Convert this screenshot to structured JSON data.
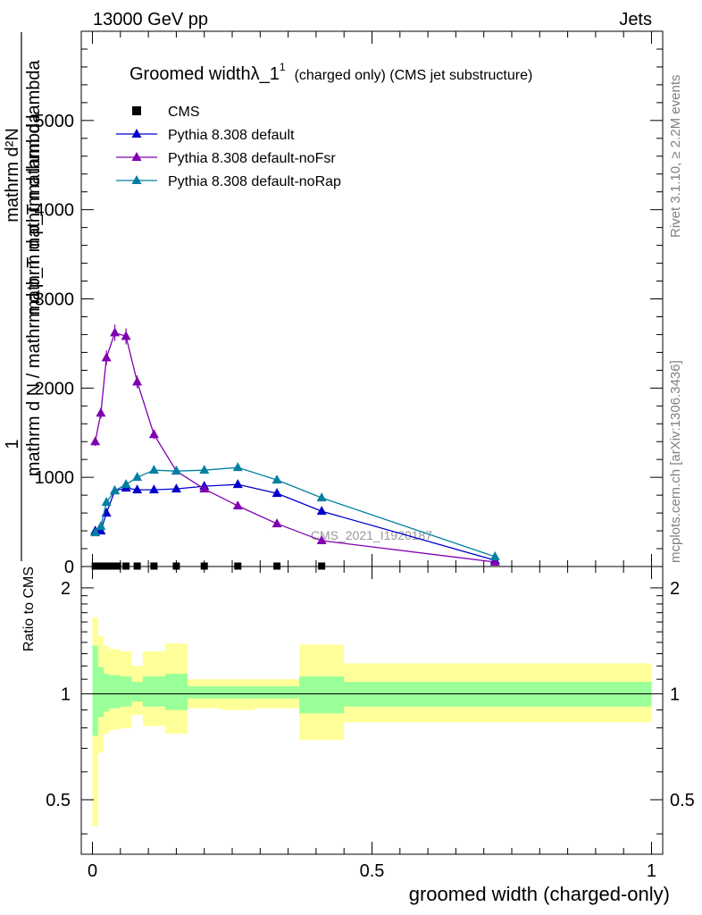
{
  "header": {
    "left": "13000 GeV pp",
    "right": "Jets"
  },
  "side_labels": {
    "rivet": "Rivet 3.1.10, ≥ 2.2M events",
    "mcplots": "mcplots.cern.ch [arXiv:1306.3436]"
  },
  "watermark": "CMS_2021_I1920187",
  "colors": {
    "cms": "#000000",
    "default": "#0000cc",
    "noFsr": "#8000b0",
    "noRap": "#0080a0",
    "band_inner": "#99ff99",
    "band_outer": "#ffff99"
  },
  "chart_data": [
    {
      "type": "line",
      "title": "Groomed widthλ_1",
      "title_sup": "1",
      "subtitle": "(charged only) (CMS jet substructure)",
      "ylabel_main": "mathrm d N / mathrm d p_T mathrm d lambda",
      "ylabel_num": "mathrm d²N",
      "ylabel_den": "mathrm d p_T mathrm d lambda",
      "ylabel_one": "1",
      "ylim": [
        0,
        6000
      ],
      "yticks": [
        {
          "v": 0,
          "label": "0"
        },
        {
          "v": 1000,
          "label": "1000"
        },
        {
          "v": 2000,
          "label": "2000"
        },
        {
          "v": 3000,
          "label": "3000"
        },
        {
          "v": 4000,
          "label": "4000"
        },
        {
          "v": 5000,
          "label": "5000"
        }
      ],
      "legend_position": "top-left",
      "series": [
        {
          "name": "CMS",
          "color_key": "cms",
          "marker": "square",
          "x": [
            0.005,
            0.015,
            0.025,
            0.035,
            0.045,
            0.06,
            0.08,
            0.11,
            0.15,
            0.2,
            0.26,
            0.33,
            0.41
          ],
          "y": [
            5,
            5,
            5,
            5,
            5,
            5,
            5,
            5,
            5,
            5,
            5,
            5,
            5
          ]
        },
        {
          "name": "Pythia 8.308 default",
          "color_key": "default",
          "marker": "triangle",
          "x": [
            0.005,
            0.015,
            0.025,
            0.04,
            0.06,
            0.08,
            0.11,
            0.15,
            0.2,
            0.26,
            0.33,
            0.41,
            0.72
          ],
          "y": [
            400,
            400,
            600,
            850,
            880,
            860,
            860,
            870,
            900,
            920,
            820,
            620,
            70
          ]
        },
        {
          "name": "Pythia 8.308 default-noFsr",
          "color_key": "noFsr",
          "marker": "triangle",
          "x": [
            0.005,
            0.015,
            0.025,
            0.04,
            0.06,
            0.08,
            0.11,
            0.15,
            0.2,
            0.26,
            0.33,
            0.41,
            0.72
          ],
          "y": [
            1400,
            1720,
            2340,
            2620,
            2580,
            2070,
            1480,
            1070,
            870,
            680,
            480,
            290,
            50
          ]
        },
        {
          "name": "Pythia 8.308 default-noRap",
          "color_key": "noRap",
          "marker": "triangle",
          "x": [
            0.005,
            0.015,
            0.025,
            0.04,
            0.06,
            0.08,
            0.11,
            0.15,
            0.2,
            0.26,
            0.33,
            0.41,
            0.72
          ],
          "y": [
            380,
            450,
            720,
            850,
            920,
            1000,
            1080,
            1070,
            1080,
            1110,
            970,
            770,
            110
          ]
        }
      ]
    },
    {
      "type": "area",
      "ylabel": "Ratio to CMS",
      "xlabel": "groomed width (charged-only)",
      "xlim": [
        -0.02,
        1.02
      ],
      "ylim": [
        0.35,
        2.3
      ],
      "xticks": [
        {
          "v": 0,
          "label": "0"
        },
        {
          "v": 0.5,
          "label": "0.5"
        },
        {
          "v": 1,
          "label": "1"
        }
      ],
      "yticks": [
        {
          "v": 0.5,
          "label": "0.5"
        },
        {
          "v": 1,
          "label": "1"
        },
        {
          "v": 2,
          "label": "2"
        }
      ],
      "bins": [
        {
          "x0": 0.0,
          "x1": 0.01,
          "in_lo": 0.76,
          "in_hi": 1.37,
          "out_lo": 0.42,
          "out_hi": 1.65
        },
        {
          "x0": 0.01,
          "x1": 0.02,
          "in_lo": 0.86,
          "in_hi": 1.19,
          "out_lo": 0.68,
          "out_hi": 1.46
        },
        {
          "x0": 0.02,
          "x1": 0.03,
          "in_lo": 0.89,
          "in_hi": 1.14,
          "out_lo": 0.77,
          "out_hi": 1.37
        },
        {
          "x0": 0.03,
          "x1": 0.05,
          "in_lo": 0.91,
          "in_hi": 1.13,
          "out_lo": 0.79,
          "out_hi": 1.34
        },
        {
          "x0": 0.05,
          "x1": 0.07,
          "in_lo": 0.92,
          "in_hi": 1.12,
          "out_lo": 0.8,
          "out_hi": 1.32
        },
        {
          "x0": 0.07,
          "x1": 0.09,
          "in_lo": 0.95,
          "in_hi": 1.08,
          "out_lo": 0.87,
          "out_hi": 1.2
        },
        {
          "x0": 0.09,
          "x1": 0.13,
          "in_lo": 0.92,
          "in_hi": 1.12,
          "out_lo": 0.81,
          "out_hi": 1.32
        },
        {
          "x0": 0.13,
          "x1": 0.17,
          "in_lo": 0.9,
          "in_hi": 1.14,
          "out_lo": 0.77,
          "out_hi": 1.39
        },
        {
          "x0": 0.17,
          "x1": 0.23,
          "in_lo": 0.97,
          "in_hi": 1.05,
          "out_lo": 0.91,
          "out_hi": 1.1
        },
        {
          "x0": 0.23,
          "x1": 0.29,
          "in_lo": 0.97,
          "in_hi": 1.05,
          "out_lo": 0.9,
          "out_hi": 1.1
        },
        {
          "x0": 0.29,
          "x1": 0.37,
          "in_lo": 0.97,
          "in_hi": 1.05,
          "out_lo": 0.91,
          "out_hi": 1.1
        },
        {
          "x0": 0.37,
          "x1": 0.45,
          "in_lo": 0.88,
          "in_hi": 1.12,
          "out_lo": 0.74,
          "out_hi": 1.38
        },
        {
          "x0": 0.45,
          "x1": 1.0,
          "in_lo": 0.92,
          "in_hi": 1.08,
          "out_lo": 0.83,
          "out_hi": 1.22
        }
      ]
    }
  ]
}
